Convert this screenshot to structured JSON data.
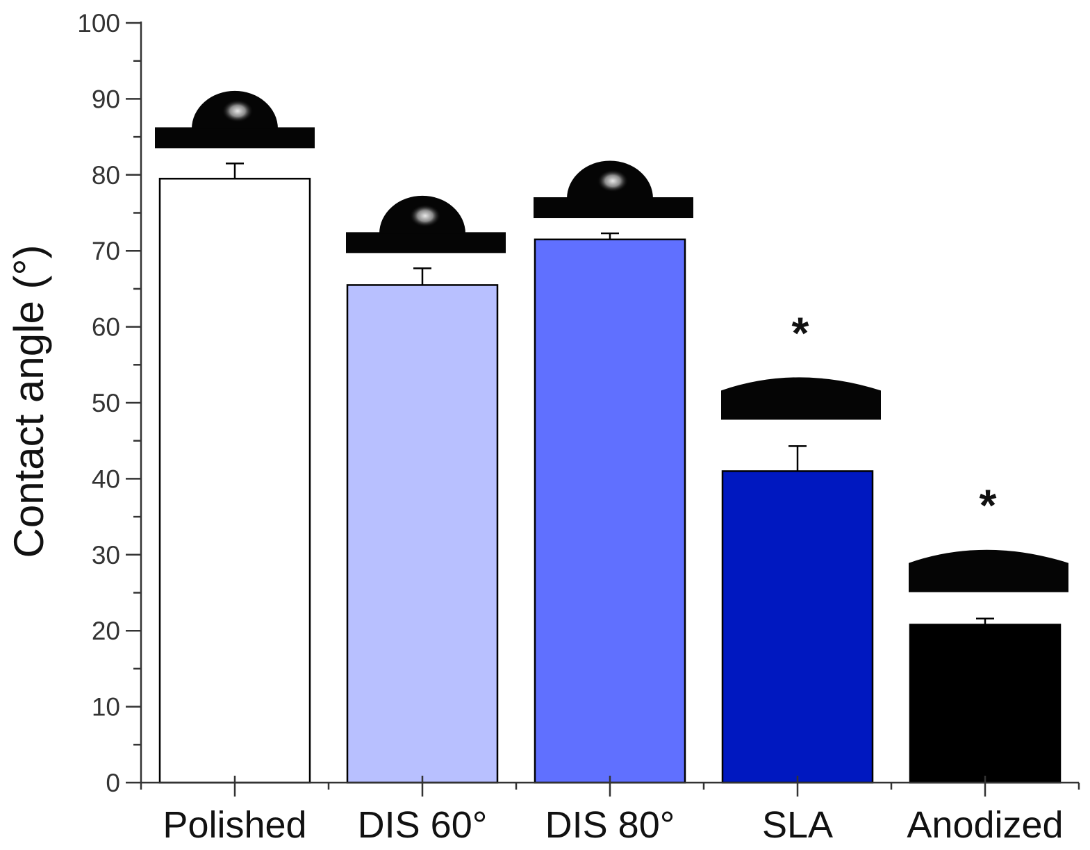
{
  "chart_data": {
    "type": "bar",
    "title": "",
    "xlabel": "",
    "ylabel": "Contact angle (°)",
    "ylim": [
      0,
      100
    ],
    "yticks": [
      0,
      10,
      20,
      30,
      40,
      50,
      60,
      70,
      80,
      90,
      100
    ],
    "yticks_minor_step": 5,
    "grid": false,
    "categories": [
      "Polished",
      "DIS 60°",
      "DIS 80°",
      "SLA",
      "Anodized"
    ],
    "values": [
      79.5,
      65.5,
      71.5,
      41,
      20.8
    ],
    "errors": [
      2.0,
      2.2,
      0.8,
      3.3,
      0.8
    ],
    "colors": [
      "#ffffff",
      "#b8c0ff",
      "#6070ff",
      "#0018c0",
      "#000000"
    ],
    "significance": [
      "",
      "",
      "",
      "*",
      "*"
    ],
    "droplet_insets": [
      {
        "category": "Polished",
        "shape": "hemispherical droplet"
      },
      {
        "category": "DIS 60°",
        "shape": "hemispherical droplet"
      },
      {
        "category": "DIS 80°",
        "shape": "hemispherical droplet"
      },
      {
        "category": "SLA",
        "shape": "flat spread droplet"
      },
      {
        "category": "Anodized",
        "shape": "flat spread droplet"
      }
    ]
  }
}
